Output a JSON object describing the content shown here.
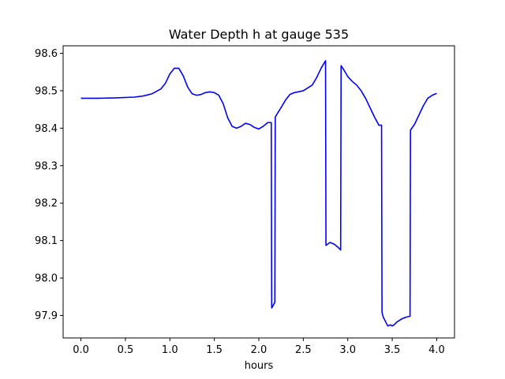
{
  "chart_data": {
    "type": "line",
    "title": "Water Depth h at gauge 535",
    "xlabel": "hours",
    "ylabel": "",
    "xlim": [
      -0.2,
      4.2
    ],
    "ylim": [
      97.84,
      98.62
    ],
    "xticks": [
      0.0,
      0.5,
      1.0,
      1.5,
      2.0,
      2.5,
      3.0,
      3.5,
      4.0
    ],
    "xtick_labels": [
      "0.0",
      "0.5",
      "1.0",
      "1.5",
      "2.0",
      "2.5",
      "3.0",
      "3.5",
      "4.0"
    ],
    "yticks": [
      97.9,
      98.0,
      98.1,
      98.2,
      98.3,
      98.4,
      98.5,
      98.6
    ],
    "ytick_labels": [
      "97.9",
      "98.0",
      "98.1",
      "98.2",
      "98.3",
      "98.4",
      "98.5",
      "98.6"
    ],
    "grid": false,
    "legend": "none",
    "series": [
      {
        "color": "#0000ff",
        "x": [
          0.0,
          0.2,
          0.4,
          0.6,
          0.7,
          0.8,
          0.9,
          0.95,
          1.0,
          1.05,
          1.1,
          1.15,
          1.2,
          1.25,
          1.3,
          1.35,
          1.4,
          1.45,
          1.5,
          1.55,
          1.6,
          1.65,
          1.7,
          1.75,
          1.8,
          1.85,
          1.9,
          1.95,
          2.0,
          2.05,
          2.1,
          2.14,
          2.145,
          2.18,
          2.185,
          2.25,
          2.3,
          2.35,
          2.4,
          2.5,
          2.6,
          2.65,
          2.7,
          2.75,
          2.755,
          2.8,
          2.85,
          2.9,
          2.92,
          2.925,
          2.95,
          3.0,
          3.05,
          3.1,
          3.15,
          3.2,
          3.25,
          3.3,
          3.35,
          3.38,
          3.385,
          3.4,
          3.45,
          3.48,
          3.5,
          3.52,
          3.55,
          3.6,
          3.65,
          3.7,
          3.705,
          3.75,
          3.8,
          3.85,
          3.9,
          3.95,
          4.0
        ],
        "y": [
          98.48,
          98.48,
          98.481,
          98.483,
          98.486,
          98.492,
          98.505,
          98.52,
          98.545,
          98.56,
          98.56,
          98.54,
          98.51,
          98.492,
          98.488,
          98.49,
          98.495,
          98.497,
          98.495,
          98.488,
          98.465,
          98.428,
          98.405,
          98.4,
          98.405,
          98.413,
          98.41,
          98.402,
          98.398,
          98.405,
          98.415,
          98.415,
          97.92,
          97.935,
          98.43,
          98.455,
          98.475,
          98.49,
          98.495,
          98.5,
          98.515,
          98.535,
          98.56,
          98.58,
          98.087,
          98.095,
          98.09,
          98.08,
          98.075,
          98.567,
          98.558,
          98.538,
          98.525,
          98.515,
          98.5,
          98.48,
          98.455,
          98.43,
          98.408,
          98.408,
          97.908,
          97.895,
          97.872,
          97.875,
          97.872,
          97.875,
          97.882,
          97.89,
          97.895,
          97.898,
          98.395,
          98.41,
          98.435,
          98.46,
          98.48,
          98.488,
          98.493
        ]
      }
    ]
  }
}
